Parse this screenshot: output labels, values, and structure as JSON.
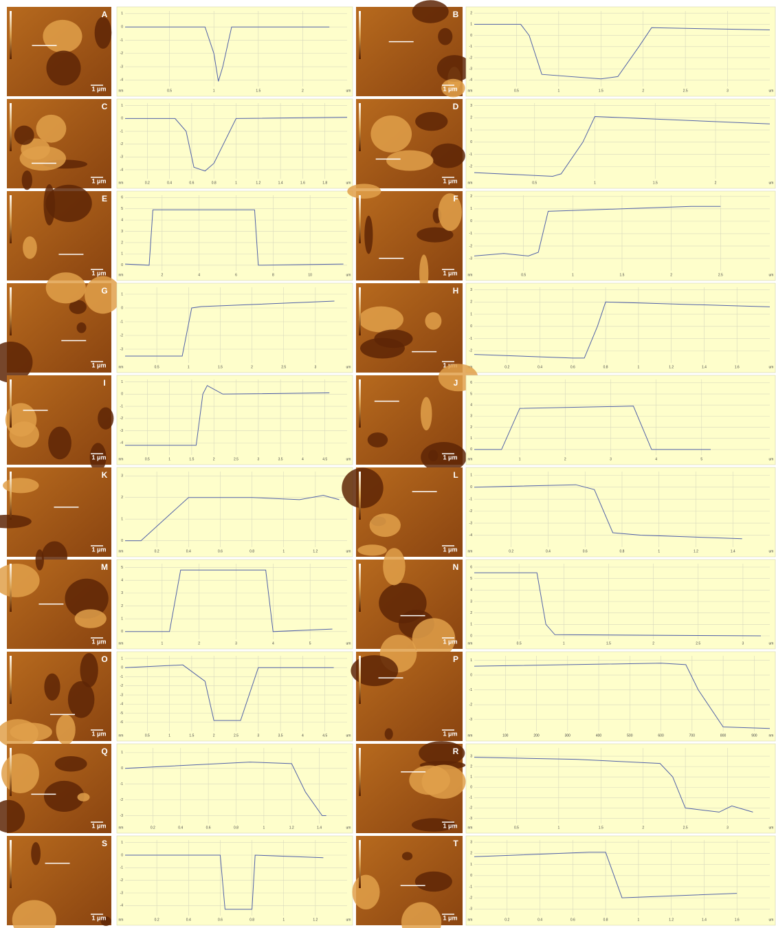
{
  "panels": [
    {
      "letter": "A",
      "scale_bar": "1 μm",
      "y_unit": "nm",
      "x_unit": "um",
      "xlim": [
        0,
        2.5
      ],
      "ylim": [
        -4.5,
        1.2
      ],
      "xticks": [
        0.5,
        1,
        1.5,
        2
      ],
      "yticks": [
        1,
        0,
        -1,
        -2,
        -3,
        -4
      ],
      "x": [
        0,
        0.9,
        1.0,
        1.05,
        1.1,
        1.2,
        2.3
      ],
      "y": [
        0,
        0,
        -2,
        -4.1,
        -3,
        0,
        0
      ]
    },
    {
      "letter": "B",
      "scale_bar": "1 μm",
      "y_unit": "nm",
      "x_unit": "um",
      "xlim": [
        0,
        3.5
      ],
      "ylim": [
        -4.6,
        2.2
      ],
      "xticks": [
        0.5,
        1,
        1.5,
        2,
        2.5,
        3
      ],
      "yticks": [
        2,
        1,
        0,
        -1,
        -2,
        -3,
        -4
      ],
      "x": [
        0,
        0.55,
        0.65,
        0.8,
        1.5,
        1.7,
        1.95,
        2.1,
        3.5
      ],
      "y": [
        1,
        1,
        0,
        -3.5,
        -3.9,
        -3.7,
        -1,
        0.7,
        0.5
      ]
    },
    {
      "letter": "C",
      "scale_bar": "1 μm",
      "y_unit": "nm",
      "x_unit": "um",
      "xlim": [
        0,
        2
      ],
      "ylim": [
        -4.7,
        1.2
      ],
      "xticks": [
        0.2,
        0.4,
        0.6,
        0.8,
        1,
        1.2,
        1.4,
        1.6,
        1.8
      ],
      "yticks": [
        1,
        0,
        -1,
        -2,
        -3,
        -4
      ],
      "x": [
        0,
        0.45,
        0.55,
        0.62,
        0.72,
        0.8,
        1,
        2
      ],
      "y": [
        0,
        0,
        -1,
        -3.8,
        -4.1,
        -3.5,
        0,
        0.1
      ]
    },
    {
      "letter": "D",
      "scale_bar": "1 μm",
      "y_unit": "nm",
      "x_unit": "um",
      "xlim": [
        0,
        2.45
      ],
      "ylim": [
        -3,
        3.2
      ],
      "xticks": [
        0.5,
        1,
        1.5,
        2
      ],
      "yticks": [
        3,
        2,
        1,
        0,
        -1,
        -2
      ],
      "x": [
        0,
        0.65,
        0.72,
        0.9,
        1,
        2.45
      ],
      "y": [
        -2.5,
        -2.8,
        -2.6,
        0,
        2.1,
        1.5
      ]
    },
    {
      "letter": "E",
      "scale_bar": "1 μm",
      "y_unit": "nm",
      "x_unit": "um",
      "xlim": [
        0,
        12
      ],
      "ylim": [
        -0.5,
        6.2
      ],
      "xticks": [
        2,
        4,
        6,
        8,
        10
      ],
      "yticks": [
        6,
        5,
        4,
        3,
        2,
        1,
        0
      ],
      "x": [
        0,
        1.3,
        1.5,
        7,
        7.2,
        11.8
      ],
      "y": [
        0.1,
        0,
        4.9,
        4.9,
        0,
        0.1
      ]
    },
    {
      "letter": "F",
      "scale_bar": "1 μm",
      "y_unit": "nm",
      "x_unit": "um",
      "xlim": [
        0,
        3
      ],
      "ylim": [
        -4,
        2.1
      ],
      "xticks": [
        0.5,
        1,
        1.5,
        2,
        2.5
      ],
      "yticks": [
        2,
        1,
        0,
        -1,
        -2,
        -3
      ],
      "x": [
        0,
        0.3,
        0.55,
        0.65,
        0.75,
        1.5,
        2.2,
        2.5
      ],
      "y": [
        -2.8,
        -2.6,
        -2.8,
        -2.5,
        0.8,
        1,
        1.2,
        1.2
      ]
    },
    {
      "letter": "G",
      "scale_bar": "1 μm",
      "y_unit": "nm",
      "x_unit": "um",
      "xlim": [
        0,
        3.5
      ],
      "ylim": [
        -4,
        1.5
      ],
      "xticks": [
        0.5,
        1,
        1.5,
        2,
        2.5,
        3
      ],
      "yticks": [
        1,
        0,
        -1,
        -2,
        -3
      ],
      "x": [
        0,
        0.9,
        1.05,
        1.2,
        3.3
      ],
      "y": [
        -3.5,
        -3.5,
        0,
        0.1,
        0.5
      ]
    },
    {
      "letter": "H",
      "scale_bar": "1 μm",
      "y_unit": "nm",
      "x_unit": "um",
      "xlim": [
        0,
        1.8
      ],
      "ylim": [
        -3,
        3.2
      ],
      "xticks": [
        0.2,
        0.4,
        0.6,
        0.8,
        1,
        1.2,
        1.4,
        1.6
      ],
      "yticks": [
        3,
        2,
        1,
        0,
        -1,
        -2
      ],
      "x": [
        0,
        0.6,
        0.67,
        0.75,
        0.8,
        1.8
      ],
      "y": [
        -2.3,
        -2.6,
        -2.6,
        0,
        2,
        1.6
      ]
    },
    {
      "letter": "I",
      "scale_bar": "1 μm",
      "y_unit": "nm",
      "x_unit": "um",
      "xlim": [
        0,
        5
      ],
      "ylim": [
        -5,
        1.2
      ],
      "xticks": [
        0.5,
        1,
        1.5,
        2,
        2.5,
        3,
        3.5,
        4,
        4.5
      ],
      "yticks": [
        1,
        0,
        -1,
        -2,
        -3,
        -4
      ],
      "x": [
        0,
        1.6,
        1.75,
        1.85,
        2.2,
        4.6
      ],
      "y": [
        -4.2,
        -4.2,
        0,
        0.7,
        0,
        0.1
      ]
    },
    {
      "letter": "J",
      "scale_bar": "1 μm",
      "y_unit": "nm",
      "x_unit": "um",
      "xlim": [
        0,
        6.5
      ],
      "ylim": [
        -0.5,
        6.3
      ],
      "xticks": [
        1,
        2,
        3,
        4,
        5
      ],
      "yticks": [
        6,
        5,
        4,
        3,
        2,
        1,
        0
      ],
      "x": [
        0,
        0.6,
        1,
        3.5,
        3.9,
        5.2
      ],
      "y": [
        0,
        0,
        3.7,
        3.9,
        0,
        0
      ]
    },
    {
      "letter": "K",
      "scale_bar": "1 μm",
      "y_unit": "nm",
      "x_unit": "um",
      "xlim": [
        0,
        1.4
      ],
      "ylim": [
        -0.3,
        3.2
      ],
      "xticks": [
        0.2,
        0.4,
        0.6,
        0.8,
        1,
        1.2
      ],
      "yticks": [
        3,
        2,
        1,
        0
      ],
      "x": [
        0,
        0.1,
        0.25,
        0.4,
        0.8,
        1.1,
        1.25,
        1.35
      ],
      "y": [
        0,
        0,
        1,
        2,
        2,
        1.9,
        2.1,
        1.9
      ]
    },
    {
      "letter": "L",
      "scale_bar": "1 μm",
      "y_unit": "nm",
      "x_unit": "um",
      "xlim": [
        0,
        1.6
      ],
      "ylim": [
        -5,
        1.3
      ],
      "xticks": [
        0.2,
        0.4,
        0.6,
        0.8,
        1,
        1.2,
        1.4
      ],
      "yticks": [
        1,
        0,
        -1,
        -2,
        -3,
        -4
      ],
      "x": [
        0,
        0.55,
        0.65,
        0.75,
        0.9,
        1.45
      ],
      "y": [
        0,
        0.2,
        -0.2,
        -3.8,
        -4,
        -4.3
      ]
    },
    {
      "letter": "M",
      "scale_bar": "1 μm",
      "y_unit": "nm",
      "x_unit": "um",
      "xlim": [
        0,
        6
      ],
      "ylim": [
        -0.6,
        5.3
      ],
      "xticks": [
        1,
        2,
        3,
        4,
        5
      ],
      "yticks": [
        5,
        4,
        3,
        2,
        1,
        0
      ],
      "x": [
        0,
        1.2,
        1.5,
        3.8,
        4,
        5.6
      ],
      "y": [
        0,
        0,
        4.8,
        4.8,
        0,
        0.2
      ]
    },
    {
      "letter": "N",
      "scale_bar": "1 μm",
      "y_unit": "nm",
      "x_unit": "um",
      "xlim": [
        0,
        3.3
      ],
      "ylim": [
        -0.3,
        6.3
      ],
      "xticks": [
        0.5,
        1,
        1.5,
        2,
        2.5,
        3
      ],
      "yticks": [
        6,
        5,
        4,
        3,
        2,
        1,
        0
      ],
      "x": [
        0,
        0.7,
        0.8,
        0.9,
        3.2
      ],
      "y": [
        5.5,
        5.5,
        1,
        0.1,
        0
      ]
    },
    {
      "letter": "O",
      "scale_bar": "1 μm",
      "y_unit": "nm",
      "x_unit": "um",
      "xlim": [
        0,
        5
      ],
      "ylim": [
        -7,
        1.3
      ],
      "xticks": [
        0.5,
        1,
        1.5,
        2,
        2.5,
        3,
        3.5,
        4,
        4.5
      ],
      "yticks": [
        1,
        0,
        -1,
        -2,
        -3,
        -4,
        -5,
        -6
      ],
      "x": [
        0,
        1.3,
        1.8,
        2,
        2.6,
        3,
        4.7
      ],
      "y": [
        0,
        0.3,
        -1.5,
        -5.8,
        -5.8,
        0,
        0
      ]
    },
    {
      "letter": "P",
      "scale_bar": "1 μm",
      "y_unit": "nm",
      "x_unit": "nm",
      "xlim": [
        0,
        950
      ],
      "ylim": [
        -3.8,
        1.3
      ],
      "xticks": [
        100,
        200,
        300,
        400,
        500,
        600,
        700,
        800,
        900
      ],
      "yticks": [
        1,
        0,
        -1,
        -2,
        -3
      ],
      "x": [
        0,
        600,
        680,
        720,
        800,
        950
      ],
      "y": [
        0.6,
        0.8,
        0.7,
        -1,
        -3.5,
        -3.6
      ]
    },
    {
      "letter": "Q",
      "scale_bar": "1 μm",
      "y_unit": "nm",
      "x_unit": "um",
      "xlim": [
        0,
        1.6
      ],
      "ylim": [
        -3.5,
        1.3
      ],
      "xticks": [
        0.2,
        0.4,
        0.6,
        0.8,
        1,
        1.2,
        1.4
      ],
      "yticks": [
        1,
        0,
        -1,
        -2,
        -3
      ],
      "x": [
        0,
        0.9,
        1.2,
        1.3,
        1.42,
        1.45
      ],
      "y": [
        0,
        0.4,
        0.3,
        -1.5,
        -3,
        -3
      ]
    },
    {
      "letter": "R",
      "scale_bar": "1 μm",
      "y_unit": "nm",
      "x_unit": "um",
      "xlim": [
        0,
        3.5
      ],
      "ylim": [
        -3.5,
        3.8
      ],
      "xticks": [
        0.5,
        1,
        1.5,
        2,
        2.5,
        3
      ],
      "yticks": [
        3,
        2,
        1,
        0,
        -1,
        -2,
        -3
      ],
      "x": [
        0,
        1.2,
        2.2,
        2.35,
        2.5,
        2.9,
        3.05,
        3.3
      ],
      "y": [
        2.9,
        2.7,
        2.3,
        1,
        -2,
        -2.4,
        -1.8,
        -2.4
      ]
    },
    {
      "letter": "S",
      "scale_bar": "1 μm",
      "y_unit": "nm",
      "x_unit": "um",
      "xlim": [
        0,
        1.4
      ],
      "ylim": [
        -4.8,
        1.2
      ],
      "xticks": [
        0.2,
        0.4,
        0.6,
        0.8,
        1,
        1.2
      ],
      "yticks": [
        1,
        0,
        -1,
        -2,
        -3,
        -4
      ],
      "x": [
        0,
        0.6,
        0.63,
        0.8,
        0.82,
        1.25
      ],
      "y": [
        0,
        0,
        -4.3,
        -4.3,
        0,
        -0.2
      ]
    },
    {
      "letter": "T",
      "scale_bar": "1 μm",
      "y_unit": "nm",
      "x_unit": "um",
      "xlim": [
        0,
        1.8
      ],
      "ylim": [
        -3.6,
        3.2
      ],
      "xticks": [
        0.2,
        0.4,
        0.6,
        0.8,
        1,
        1.2,
        1.4,
        1.6
      ],
      "yticks": [
        3,
        2,
        1,
        0,
        -1,
        -2,
        -3
      ],
      "x": [
        0,
        0.7,
        0.8,
        0.9,
        1.6
      ],
      "y": [
        1.7,
        2.1,
        2.1,
        -2,
        -1.6
      ]
    }
  ]
}
